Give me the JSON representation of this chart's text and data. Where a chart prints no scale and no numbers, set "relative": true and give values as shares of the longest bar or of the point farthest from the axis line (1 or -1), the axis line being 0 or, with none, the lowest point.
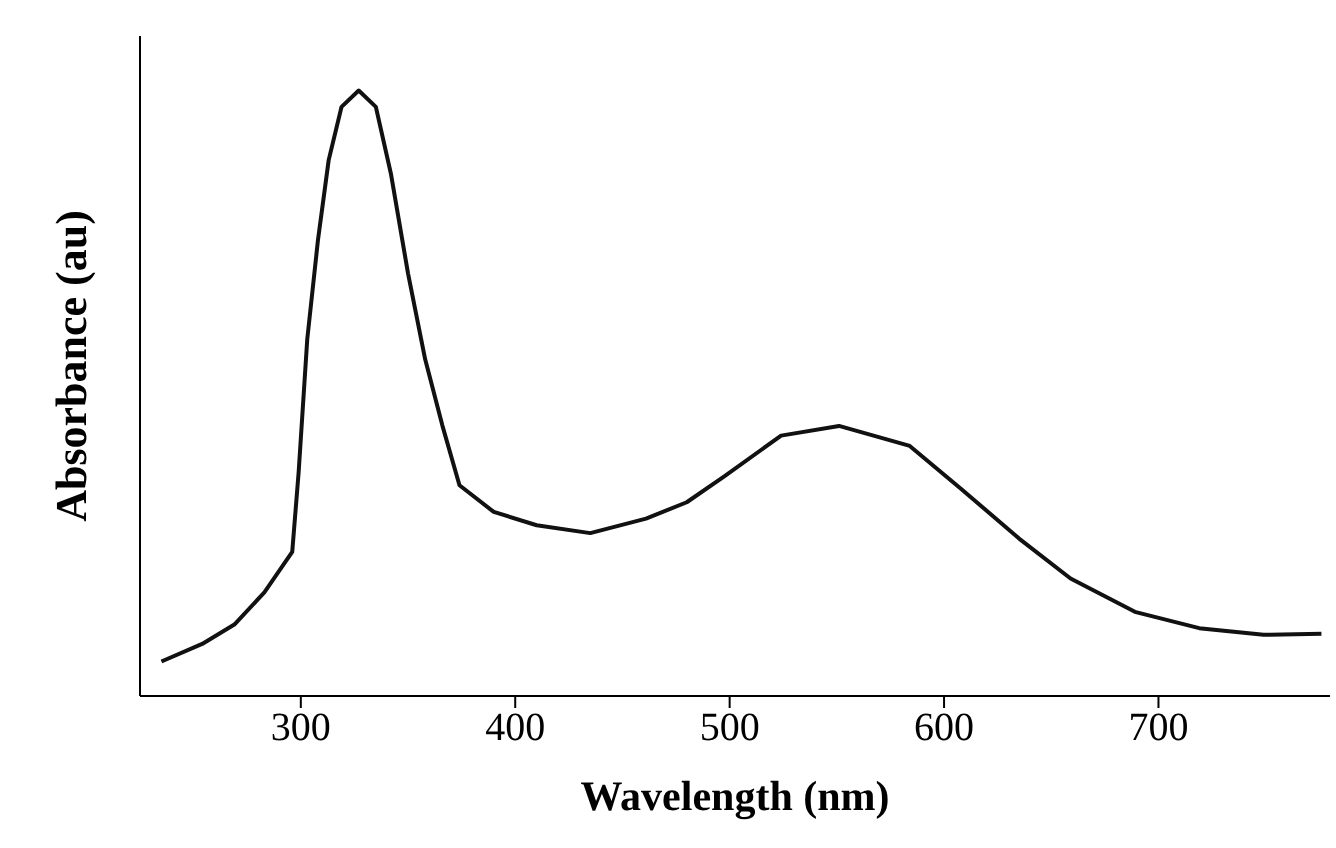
{
  "chart_data": {
    "type": "line",
    "relative": true,
    "xlabel": "Wavelength (nm)",
    "ylabel": "Absorbance (au)",
    "xlim": [
      225,
      780
    ],
    "xticks": [
      300,
      400,
      500,
      600,
      700
    ],
    "marker": "none",
    "line_style": "solid",
    "x": [
      235,
      254,
      269,
      283,
      296,
      299,
      303,
      308,
      313,
      319,
      327,
      335,
      342,
      350,
      358,
      366,
      374,
      390,
      410,
      435,
      461,
      480,
      498,
      524,
      551,
      584,
      608,
      635,
      659,
      689,
      719,
      749,
      776
    ],
    "series": [
      {
        "color": "#111111",
        "values": [
          0.057,
          0.086,
          0.118,
          0.171,
          0.238,
          0.37,
          0.589,
          0.753,
          0.885,
          0.973,
          1.0,
          0.973,
          0.863,
          0.698,
          0.556,
          0.447,
          0.348,
          0.304,
          0.282,
          0.269,
          0.293,
          0.32,
          0.364,
          0.43,
          0.446,
          0.413,
          0.342,
          0.26,
          0.194,
          0.139,
          0.112,
          0.101,
          0.103
        ]
      }
    ]
  }
}
